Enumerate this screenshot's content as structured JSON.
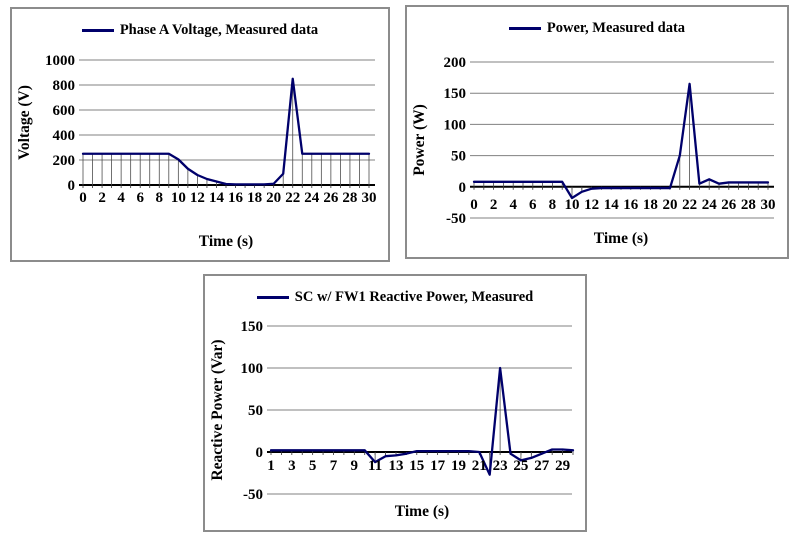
{
  "styles": {
    "line_color": "#00006b",
    "grid_color": "#808080",
    "axis_color": "#000000",
    "drop_line_color": "#4d4d4d",
    "frame_color": "#8c8c8c",
    "text_color": "#000000"
  },
  "chart_data": [
    {
      "type": "line",
      "legend": "Phase A Voltage, Measured data",
      "xlabel": "Time (s)",
      "ylabel": "Voltage (V)",
      "x": [
        0,
        1,
        2,
        3,
        4,
        5,
        6,
        7,
        8,
        9,
        10,
        11,
        12,
        13,
        14,
        15,
        16,
        17,
        18,
        19,
        20,
        21,
        22,
        23,
        24,
        25,
        26,
        27,
        28,
        29,
        30
      ],
      "values": [
        250,
        250,
        250,
        250,
        250,
        250,
        250,
        250,
        250,
        250,
        205,
        130,
        80,
        48,
        28,
        8,
        5,
        5,
        5,
        5,
        10,
        90,
        850,
        250,
        250,
        250,
        250,
        250,
        250,
        250,
        250
      ],
      "xticks": [
        0,
        2,
        4,
        6,
        8,
        10,
        12,
        14,
        16,
        18,
        20,
        22,
        24,
        26,
        28,
        30
      ],
      "yticks": [
        0,
        200,
        400,
        600,
        800,
        1000
      ],
      "ylim": [
        0,
        1000
      ],
      "xlim": [
        0,
        30
      ],
      "grid": "horizontal",
      "drop_lines": true,
      "legend_position": "top-center"
    },
    {
      "type": "line",
      "legend": "Power, Measured data",
      "xlabel": "Time (s)",
      "ylabel": "Power (W)",
      "x": [
        0,
        1,
        2,
        3,
        4,
        5,
        6,
        7,
        8,
        9,
        10,
        11,
        12,
        13,
        14,
        15,
        16,
        17,
        18,
        19,
        20,
        21,
        22,
        23,
        24,
        25,
        26,
        27,
        28,
        29,
        30
      ],
      "values": [
        8,
        8,
        8,
        8,
        8,
        8,
        8,
        8,
        8,
        8,
        -18,
        -8,
        -3,
        -2,
        -2,
        -2,
        -2,
        -2,
        -2,
        -2,
        -2,
        50,
        165,
        5,
        12,
        5,
        7,
        7,
        7,
        7,
        7
      ],
      "xticks": [
        0,
        2,
        4,
        6,
        8,
        10,
        12,
        14,
        16,
        18,
        20,
        22,
        24,
        26,
        28,
        30
      ],
      "yticks": [
        -50,
        0,
        50,
        100,
        150,
        200
      ],
      "ylim": [
        -50,
        200
      ],
      "xlim": [
        0,
        30
      ],
      "grid": "horizontal",
      "drop_lines": true,
      "legend_position": "top-center"
    },
    {
      "type": "line",
      "legend": "SC w/ FW1 Reactive Power, Measured",
      "xlabel": "Time (s)",
      "ylabel": "Reactive Power (Var)",
      "x": [
        1,
        2,
        3,
        4,
        5,
        6,
        7,
        8,
        9,
        10,
        11,
        12,
        13,
        14,
        15,
        16,
        17,
        18,
        19,
        20,
        21,
        22,
        23,
        24,
        25,
        26,
        27,
        28,
        29,
        30
      ],
      "values": [
        2,
        2,
        2,
        2,
        2,
        2,
        2,
        2,
        2,
        2,
        -12,
        -5,
        -4,
        -2,
        1,
        1,
        1,
        1,
        1,
        1,
        0,
        -27,
        100,
        -2,
        -10,
        -7,
        -2,
        3,
        3,
        2
      ],
      "xticks": [
        1,
        3,
        5,
        7,
        9,
        11,
        13,
        15,
        17,
        19,
        21,
        23,
        25,
        27,
        29
      ],
      "yticks": [
        -50,
        0,
        50,
        100,
        150
      ],
      "ylim": [
        -50,
        150
      ],
      "xlim": [
        1,
        30
      ],
      "grid": "horizontal",
      "drop_lines": true,
      "legend_position": "top-center"
    }
  ]
}
